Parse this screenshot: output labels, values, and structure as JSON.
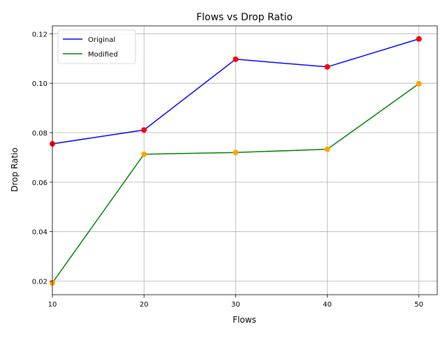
{
  "chart_data": {
    "type": "line",
    "title": "Flows vs Drop Ratio",
    "xlabel": "Flows",
    "ylabel": "Drop Ratio",
    "x": [
      10,
      20,
      30,
      40,
      50
    ],
    "xlim": [
      10,
      52
    ],
    "ylim": [
      0.0145,
      0.1232
    ],
    "xticks": [
      10,
      20,
      30,
      40,
      50
    ],
    "yticks": [
      0.02,
      0.04,
      0.06,
      0.08,
      0.1,
      0.12
    ],
    "ytick_labels": [
      "0.02",
      "0.04",
      "0.06",
      "0.08",
      "0.10",
      "0.12"
    ],
    "grid": true,
    "legend_position": "top-left",
    "series": [
      {
        "name": "Original",
        "values": [
          0.0755,
          0.0811,
          0.1097,
          0.1066,
          0.1179
        ],
        "line_color": "#0000ff",
        "marker_color": "#ff0000"
      },
      {
        "name": "Modified",
        "values": [
          0.0193,
          0.0713,
          0.072,
          0.0733,
          0.0998
        ],
        "line_color": "#008000",
        "marker_color": "#ffa500"
      }
    ]
  }
}
